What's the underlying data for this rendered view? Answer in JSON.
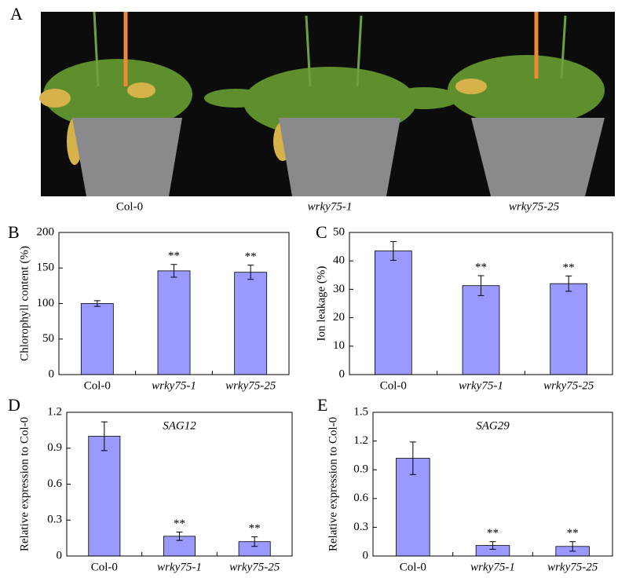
{
  "photo_panel": {
    "panel_label": "A",
    "captions": [
      "Col-0",
      "wrky75-1",
      "wrky75-25"
    ]
  },
  "chart_data": [
    {
      "type": "bar",
      "panel_label": "B",
      "ylabel": "Chlorophyll content (%)",
      "categories": [
        "Col-0",
        "wrky75-1",
        "wrky75-25"
      ],
      "values": [
        100,
        146,
        144
      ],
      "errors": [
        4,
        9,
        10
      ],
      "significance": [
        null,
        "**",
        "**"
      ],
      "color": "#9999ff",
      "ylim": [
        0,
        200
      ],
      "yticks": [
        0,
        50,
        100,
        150,
        200
      ]
    },
    {
      "type": "bar",
      "panel_label": "C",
      "ylabel": "Ion leakage (%)",
      "categories": [
        "Col-0",
        "wrky75-1",
        "wrky75-25"
      ],
      "values": [
        43.5,
        31.3,
        32
      ],
      "errors": [
        3.3,
        3.5,
        2.7
      ],
      "significance": [
        null,
        "**",
        "**"
      ],
      "color": "#9999ff",
      "ylim": [
        0,
        50
      ],
      "yticks": [
        0,
        10,
        20,
        30,
        40,
        50
      ]
    },
    {
      "type": "bar",
      "panel_label": "D",
      "ylabel": "Relative expression to Col-0",
      "subtitle": "SAG12",
      "categories": [
        "Col-0",
        "wrky75-1",
        "wrky75-25"
      ],
      "values": [
        1.0,
        0.165,
        0.12
      ],
      "errors": [
        0.12,
        0.035,
        0.04
      ],
      "significance": [
        null,
        "**",
        "**"
      ],
      "color": "#9999ff",
      "ylim": [
        0,
        1.2
      ],
      "yticks": [
        0,
        0.3,
        0.6,
        0.9,
        1.2
      ]
    },
    {
      "type": "bar",
      "panel_label": "E",
      "ylabel": "Relative expression to Col-0",
      "subtitle": "SAG29",
      "categories": [
        "Col-0",
        "wrky75-1",
        "wrky75-25"
      ],
      "values": [
        1.02,
        0.11,
        0.1
      ],
      "errors": [
        0.17,
        0.04,
        0.05
      ],
      "significance": [
        null,
        "**",
        "**"
      ],
      "color": "#9999ff",
      "ylim": [
        0,
        1.5
      ],
      "yticks": [
        0,
        0.3,
        0.6,
        0.9,
        1.2,
        1.5
      ]
    }
  ]
}
